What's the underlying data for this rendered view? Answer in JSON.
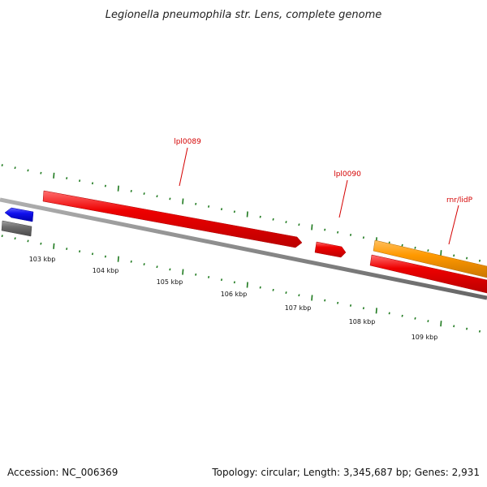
{
  "title": "Legionella pneumophila str. Lens, complete genome",
  "footer": {
    "accession": "Accession: NC_006369",
    "summary": "Topology: circular; Length: 3,345,687 bp; Genes: 2,931"
  },
  "colors": {
    "backbone": "#8a8a8a",
    "gene_red": "#ee0000",
    "gene_blue": "#1010ee",
    "gene_gray": "#6e6e6e",
    "gene_orange": "#ff9900",
    "tick_green": "#1f7a1f",
    "label_red": "#d40000"
  },
  "scale_labels": [
    "103 kbp",
    "104 kbp",
    "105 kbp",
    "106 kbp",
    "107 kbp",
    "108 kbp",
    "109 kbp"
  ],
  "genes": [
    {
      "label": "lpl0089",
      "strand": "forward",
      "color_key": "gene_red"
    },
    {
      "label": "lpl0090",
      "strand": "forward",
      "color_key": "gene_red"
    },
    {
      "label": "rnr/lidP",
      "strand": "forward",
      "color_key": "gene_orange"
    },
    {
      "label": "",
      "strand": "reverse",
      "color_key": "gene_blue"
    },
    {
      "label": "",
      "strand": "reverse",
      "color_key": "gene_gray"
    },
    {
      "label": "",
      "strand": "forward",
      "color_key": "gene_red"
    }
  ]
}
